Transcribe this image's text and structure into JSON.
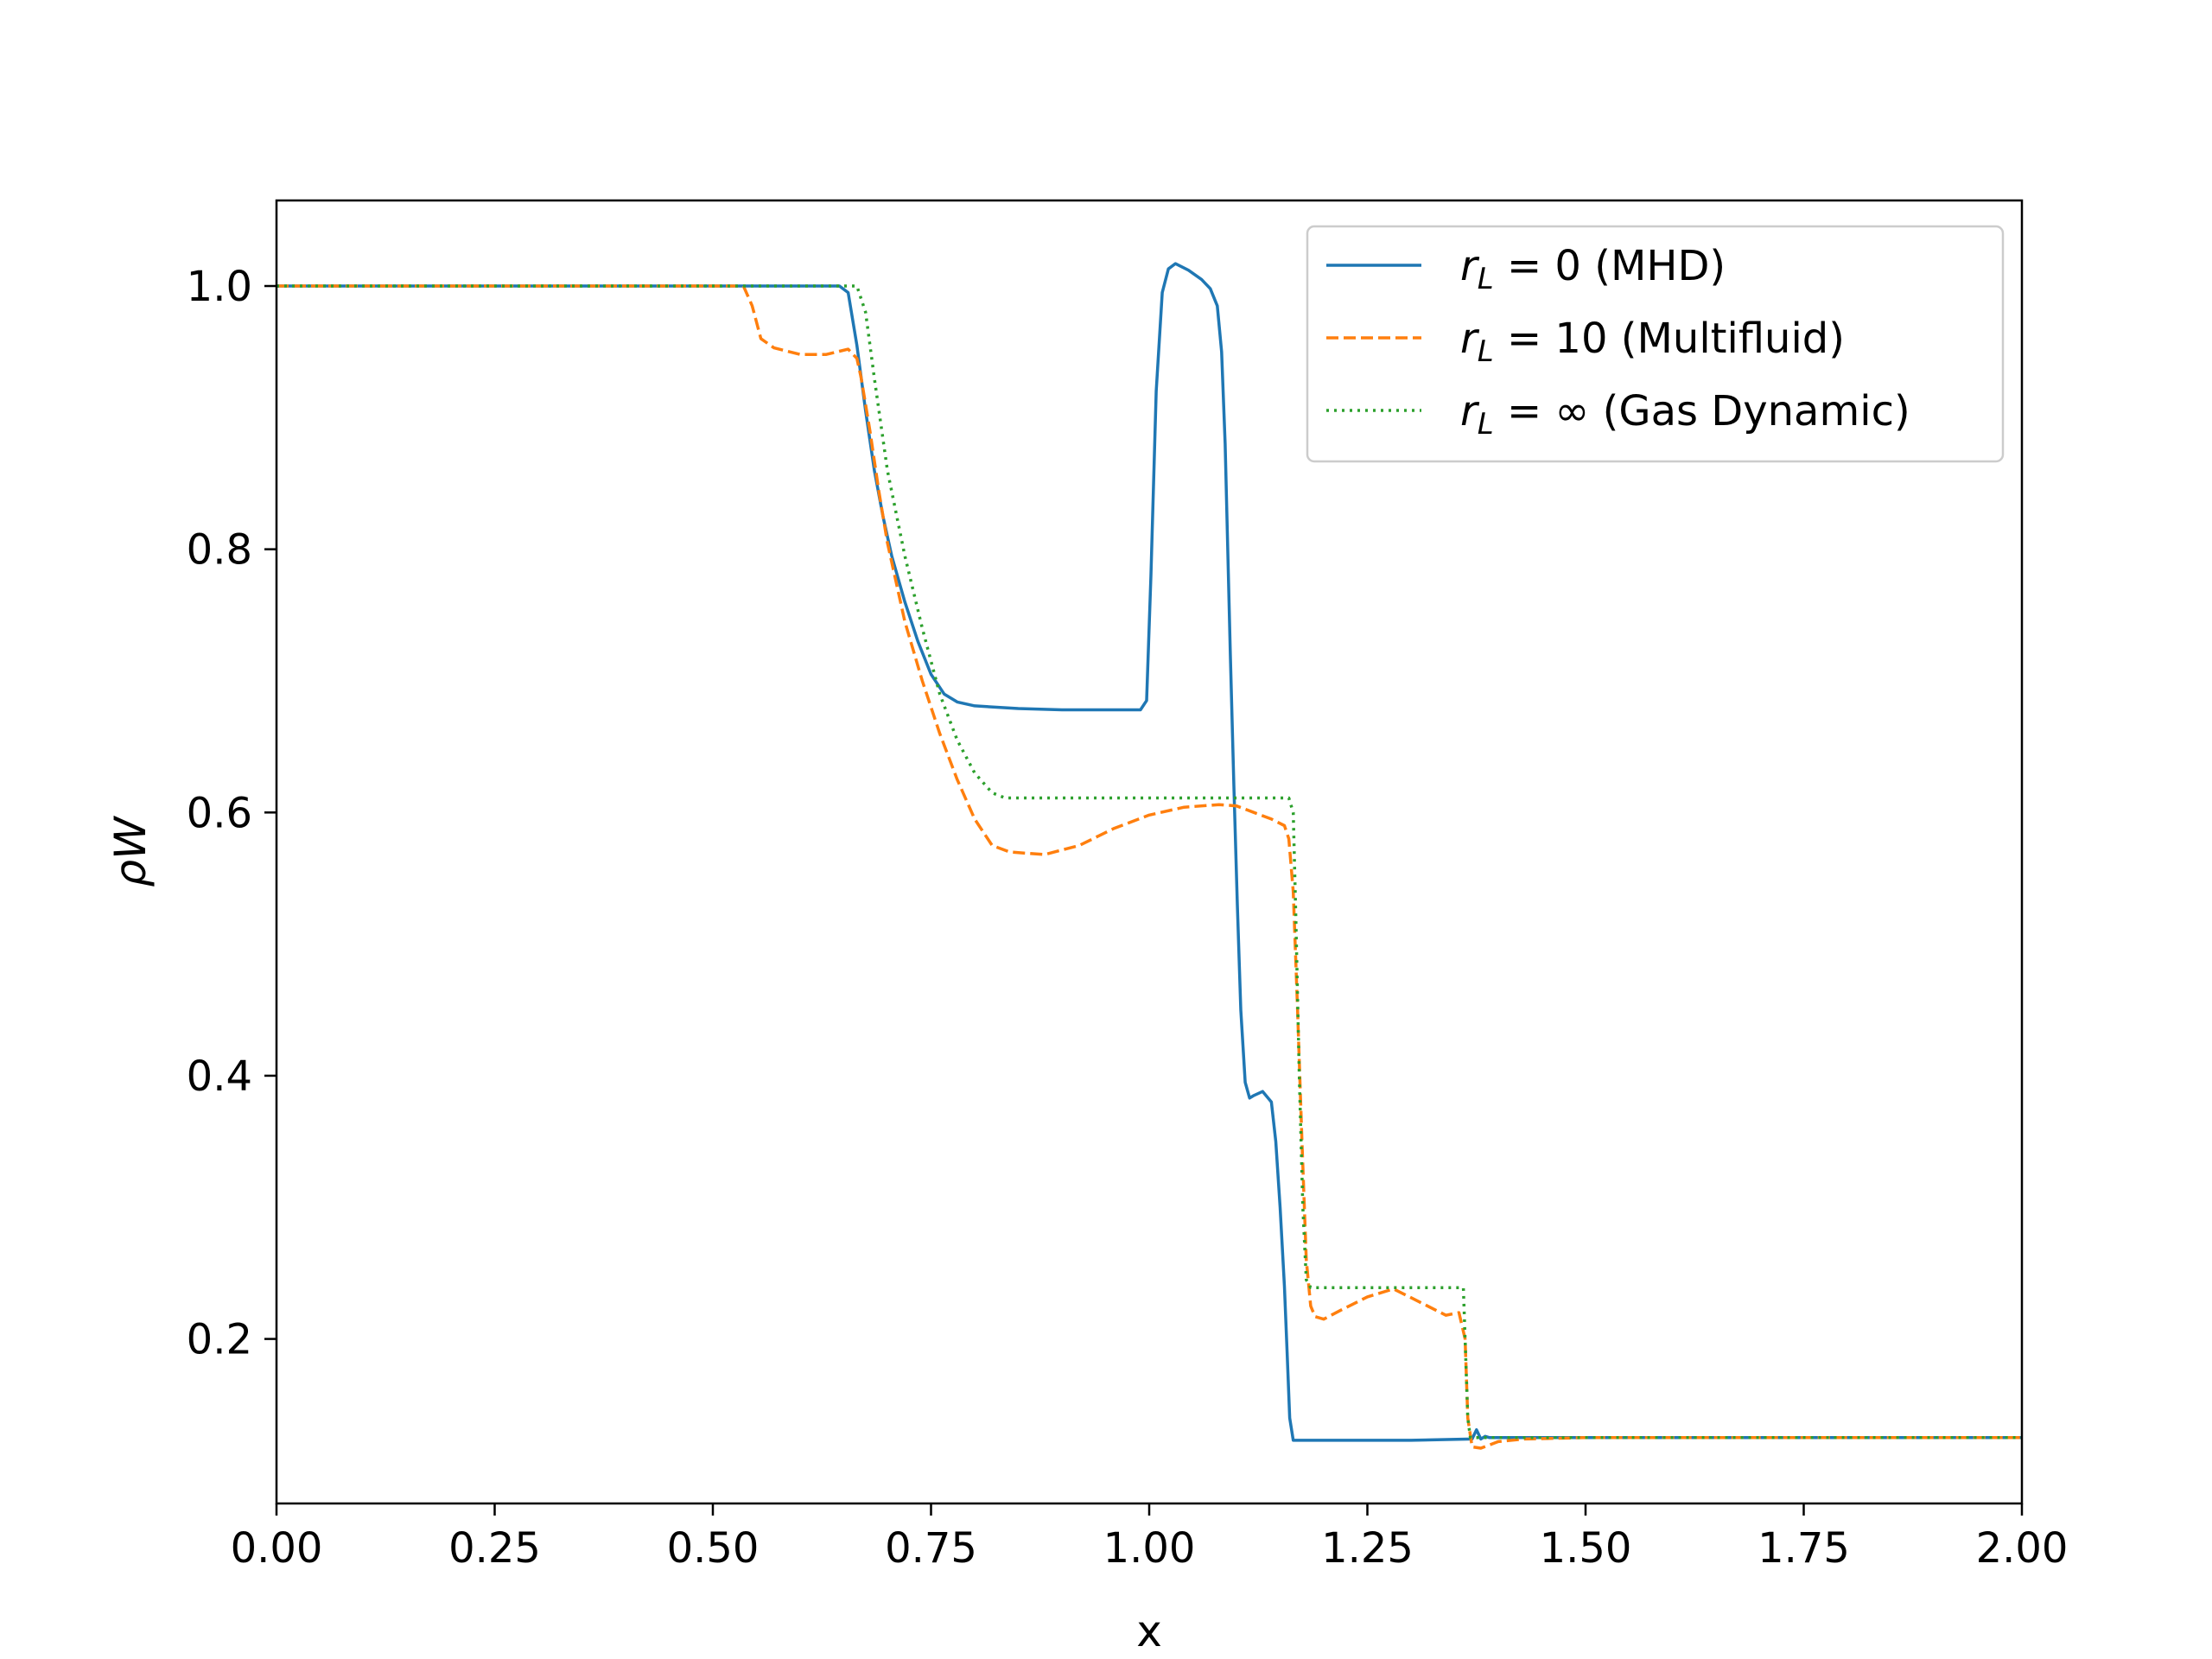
{
  "chart_data": {
    "type": "line",
    "xlabel": "x",
    "ylabel": "ρW",
    "xlim": [
      0.0,
      2.0
    ],
    "ylim": [
      0.075,
      1.065
    ],
    "xticks": [
      "0.00",
      "0.25",
      "0.50",
      "0.75",
      "1.00",
      "1.25",
      "1.50",
      "1.75",
      "2.00"
    ],
    "yticks": [
      "0.2",
      "0.4",
      "0.6",
      "0.8",
      "1.0"
    ],
    "grid": false,
    "legend_position": "top-right",
    "series": [
      {
        "name": "r_L = 0 (MHD)",
        "legend": {
          "var": "r",
          "sub": "L",
          "rest": " = 0 (MHD)"
        },
        "color": "#1f77b4",
        "style": "solid",
        "x": [
          0.0,
          0.645,
          0.655,
          0.665,
          0.675,
          0.685,
          0.695,
          0.705,
          0.72,
          0.735,
          0.75,
          0.765,
          0.78,
          0.8,
          0.85,
          0.9,
          0.95,
          0.99,
          0.997,
          1.002,
          1.008,
          1.015,
          1.022,
          1.03,
          1.045,
          1.06,
          1.07,
          1.078,
          1.083,
          1.087,
          1.09,
          1.093,
          1.097,
          1.101,
          1.105,
          1.11,
          1.115,
          1.12,
          1.13,
          1.14,
          1.145,
          1.15,
          1.155,
          1.158,
          1.161,
          1.165,
          1.2,
          1.3,
          1.37,
          1.375,
          1.38,
          1.385,
          1.39,
          1.4,
          1.5,
          2.0
        ],
        "y": [
          1.0,
          1.0,
          0.995,
          0.955,
          0.905,
          0.86,
          0.825,
          0.795,
          0.76,
          0.73,
          0.705,
          0.69,
          0.684,
          0.681,
          0.679,
          0.678,
          0.678,
          0.678,
          0.685,
          0.78,
          0.92,
          0.995,
          1.013,
          1.017,
          1.012,
          1.005,
          0.998,
          0.985,
          0.95,
          0.88,
          0.8,
          0.72,
          0.62,
          0.53,
          0.45,
          0.395,
          0.383,
          0.385,
          0.388,
          0.38,
          0.35,
          0.3,
          0.24,
          0.19,
          0.14,
          0.123,
          0.123,
          0.123,
          0.124,
          0.131,
          0.124,
          0.126,
          0.125,
          0.125,
          0.125,
          0.125
        ]
      },
      {
        "name": "r_L = 10 (Multifluid)",
        "legend": {
          "var": "r",
          "sub": "L",
          "rest": " = 10 (Multifluid)"
        },
        "color": "#ff7f0e",
        "style": "dashed",
        "x": [
          0.0,
          0.535,
          0.545,
          0.555,
          0.57,
          0.6,
          0.63,
          0.655,
          0.665,
          0.67,
          0.68,
          0.69,
          0.7,
          0.72,
          0.74,
          0.76,
          0.78,
          0.8,
          0.82,
          0.84,
          0.88,
          0.92,
          0.96,
          1.0,
          1.04,
          1.08,
          1.1,
          1.12,
          1.14,
          1.155,
          1.16,
          1.165,
          1.17,
          1.175,
          1.18,
          1.185,
          1.19,
          1.2,
          1.22,
          1.25,
          1.28,
          1.31,
          1.34,
          1.355,
          1.362,
          1.365,
          1.37,
          1.38,
          1.4,
          1.43,
          1.5,
          2.0
        ],
        "y": [
          1.0,
          1.0,
          0.985,
          0.96,
          0.953,
          0.948,
          0.948,
          0.952,
          0.945,
          0.93,
          0.89,
          0.845,
          0.805,
          0.745,
          0.7,
          0.66,
          0.625,
          0.595,
          0.575,
          0.57,
          0.568,
          0.575,
          0.588,
          0.598,
          0.604,
          0.606,
          0.605,
          0.6,
          0.595,
          0.59,
          0.58,
          0.54,
          0.45,
          0.35,
          0.26,
          0.225,
          0.217,
          0.215,
          0.222,
          0.232,
          0.238,
          0.228,
          0.218,
          0.22,
          0.2,
          0.14,
          0.118,
          0.117,
          0.122,
          0.124,
          0.125,
          0.125
        ]
      },
      {
        "name": "r_L = ∞ (Gas Dynamic)",
        "legend": {
          "var": "r",
          "sub": "L",
          "rest": " = ∞ (Gas Dynamic)"
        },
        "color": "#2ca02c",
        "style": "dotted",
        "x": [
          0.0,
          0.665,
          0.675,
          0.685,
          0.7,
          0.72,
          0.74,
          0.76,
          0.78,
          0.8,
          0.82,
          0.835,
          0.86,
          0.9,
          1.0,
          1.1,
          1.16,
          1.165,
          1.168,
          1.172,
          1.176,
          1.18,
          1.185,
          1.2,
          1.3,
          1.36,
          1.362,
          1.365,
          1.368,
          1.5,
          2.0
        ],
        "y": [
          1.0,
          1.0,
          0.98,
          0.93,
          0.86,
          0.795,
          0.74,
          0.69,
          0.655,
          0.63,
          0.615,
          0.611,
          0.611,
          0.611,
          0.611,
          0.611,
          0.611,
          0.6,
          0.52,
          0.4,
          0.3,
          0.245,
          0.239,
          0.239,
          0.239,
          0.239,
          0.2,
          0.14,
          0.125,
          0.125,
          0.125
        ]
      }
    ]
  }
}
